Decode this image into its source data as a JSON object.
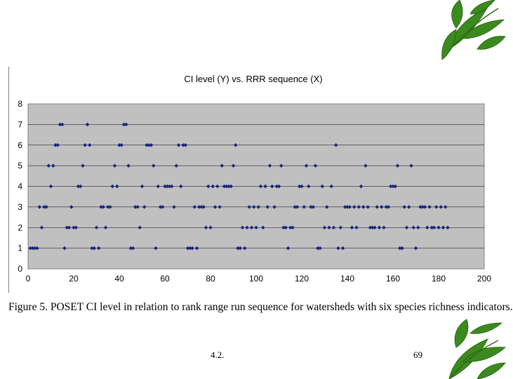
{
  "slide": {
    "caption": "Figure 5. POSET CI level in relation to rank range run sequence for watersheds with six species richness indicators.",
    "section_number": "4.2.",
    "page_number": "69",
    "decoration_icon": "leaf-icon"
  },
  "chart_data": {
    "type": "scatter",
    "title": "CI level (Y) vs. RRR sequence (X)",
    "xlabel": "",
    "ylabel": "",
    "xlim": [
      0,
      200
    ],
    "ylim": [
      0,
      8
    ],
    "xticks": [
      0,
      20,
      40,
      60,
      80,
      100,
      120,
      140,
      160,
      180,
      200
    ],
    "yticks": [
      0,
      1,
      2,
      3,
      4,
      5,
      6,
      7,
      8
    ],
    "grid": "horizontal",
    "legend": "none",
    "plot_background": "#c0c0c0",
    "marker_color": "#1a237e",
    "series": [
      {
        "points": [
          [
            1,
            1
          ],
          [
            2,
            1
          ],
          [
            3,
            1
          ],
          [
            4,
            1
          ],
          [
            5,
            3
          ],
          [
            6,
            2
          ],
          [
            7,
            3
          ],
          [
            8,
            3
          ],
          [
            9,
            5
          ],
          [
            10,
            4
          ],
          [
            11,
            5
          ],
          [
            12,
            6
          ],
          [
            13,
            6
          ],
          [
            14,
            7
          ],
          [
            15,
            7
          ],
          [
            16,
            1
          ],
          [
            17,
            2
          ],
          [
            18,
            2
          ],
          [
            19,
            3
          ],
          [
            20,
            2
          ],
          [
            21,
            2
          ],
          [
            22,
            4
          ],
          [
            23,
            4
          ],
          [
            24,
            5
          ],
          [
            25,
            6
          ],
          [
            26,
            7
          ],
          [
            27,
            6
          ],
          [
            28,
            1
          ],
          [
            29,
            1
          ],
          [
            30,
            2
          ],
          [
            31,
            1
          ],
          [
            32,
            3
          ],
          [
            33,
            3
          ],
          [
            34,
            2
          ],
          [
            35,
            3
          ],
          [
            36,
            3
          ],
          [
            37,
            4
          ],
          [
            38,
            5
          ],
          [
            39,
            4
          ],
          [
            40,
            6
          ],
          [
            41,
            6
          ],
          [
            42,
            7
          ],
          [
            43,
            7
          ],
          [
            44,
            5
          ],
          [
            45,
            1
          ],
          [
            46,
            1
          ],
          [
            47,
            3
          ],
          [
            48,
            3
          ],
          [
            49,
            2
          ],
          [
            50,
            4
          ],
          [
            51,
            3
          ],
          [
            52,
            6
          ],
          [
            53,
            6
          ],
          [
            54,
            6
          ],
          [
            55,
            5
          ],
          [
            56,
            1
          ],
          [
            57,
            4
          ],
          [
            58,
            3
          ],
          [
            59,
            3
          ],
          [
            60,
            4
          ],
          [
            61,
            4
          ],
          [
            62,
            4
          ],
          [
            63,
            4
          ],
          [
            64,
            3
          ],
          [
            65,
            5
          ],
          [
            66,
            6
          ],
          [
            67,
            4
          ],
          [
            68,
            6
          ],
          [
            69,
            6
          ],
          [
            70,
            1
          ],
          [
            71,
            1
          ],
          [
            72,
            1
          ],
          [
            73,
            3
          ],
          [
            74,
            1
          ],
          [
            75,
            3
          ],
          [
            76,
            3
          ],
          [
            77,
            3
          ],
          [
            78,
            2
          ],
          [
            79,
            4
          ],
          [
            80,
            2
          ],
          [
            81,
            4
          ],
          [
            82,
            3
          ],
          [
            83,
            4
          ],
          [
            84,
            3
          ],
          [
            85,
            5
          ],
          [
            86,
            4
          ],
          [
            87,
            4
          ],
          [
            88,
            4
          ],
          [
            89,
            4
          ],
          [
            90,
            5
          ],
          [
            91,
            6
          ],
          [
            92,
            1
          ],
          [
            93,
            1
          ],
          [
            94,
            2
          ],
          [
            95,
            1
          ],
          [
            96,
            2
          ],
          [
            97,
            3
          ],
          [
            98,
            2
          ],
          [
            99,
            3
          ],
          [
            100,
            2
          ],
          [
            101,
            3
          ],
          [
            102,
            4
          ],
          [
            103,
            2
          ],
          [
            104,
            4
          ],
          [
            105,
            3
          ],
          [
            106,
            5
          ],
          [
            107,
            4
          ],
          [
            108,
            3
          ],
          [
            109,
            4
          ],
          [
            110,
            4
          ],
          [
            111,
            5
          ],
          [
            112,
            2
          ],
          [
            113,
            2
          ],
          [
            114,
            1
          ],
          [
            115,
            2
          ],
          [
            116,
            2
          ],
          [
            117,
            3
          ],
          [
            118,
            3
          ],
          [
            119,
            4
          ],
          [
            120,
            4
          ],
          [
            121,
            3
          ],
          [
            122,
            5
          ],
          [
            123,
            4
          ],
          [
            124,
            3
          ],
          [
            125,
            3
          ],
          [
            126,
            5
          ],
          [
            127,
            1
          ],
          [
            128,
            1
          ],
          [
            129,
            4
          ],
          [
            130,
            2
          ],
          [
            131,
            3
          ],
          [
            132,
            2
          ],
          [
            133,
            4
          ],
          [
            134,
            2
          ],
          [
            135,
            6
          ],
          [
            136,
            1
          ],
          [
            137,
            2
          ],
          [
            138,
            1
          ],
          [
            139,
            3
          ],
          [
            140,
            3
          ],
          [
            141,
            3
          ],
          [
            142,
            2
          ],
          [
            143,
            3
          ],
          [
            144,
            2
          ],
          [
            145,
            3
          ],
          [
            146,
            4
          ],
          [
            147,
            3
          ],
          [
            148,
            5
          ],
          [
            149,
            3
          ],
          [
            150,
            2
          ],
          [
            151,
            2
          ],
          [
            152,
            2
          ],
          [
            153,
            3
          ],
          [
            154,
            2
          ],
          [
            155,
            3
          ],
          [
            156,
            2
          ],
          [
            157,
            3
          ],
          [
            158,
            3
          ],
          [
            159,
            4
          ],
          [
            160,
            4
          ],
          [
            161,
            4
          ],
          [
            162,
            5
          ],
          [
            163,
            1
          ],
          [
            164,
            1
          ],
          [
            165,
            3
          ],
          [
            166,
            2
          ],
          [
            167,
            3
          ],
          [
            168,
            5
          ],
          [
            169,
            2
          ],
          [
            170,
            1
          ],
          [
            171,
            2
          ],
          [
            172,
            3
          ],
          [
            173,
            3
          ],
          [
            174,
            3
          ],
          [
            175,
            2
          ],
          [
            176,
            3
          ],
          [
            177,
            2
          ],
          [
            178,
            2
          ],
          [
            179,
            3
          ],
          [
            180,
            2
          ],
          [
            181,
            3
          ],
          [
            182,
            2
          ],
          [
            183,
            3
          ],
          [
            184,
            2
          ]
        ]
      }
    ]
  }
}
